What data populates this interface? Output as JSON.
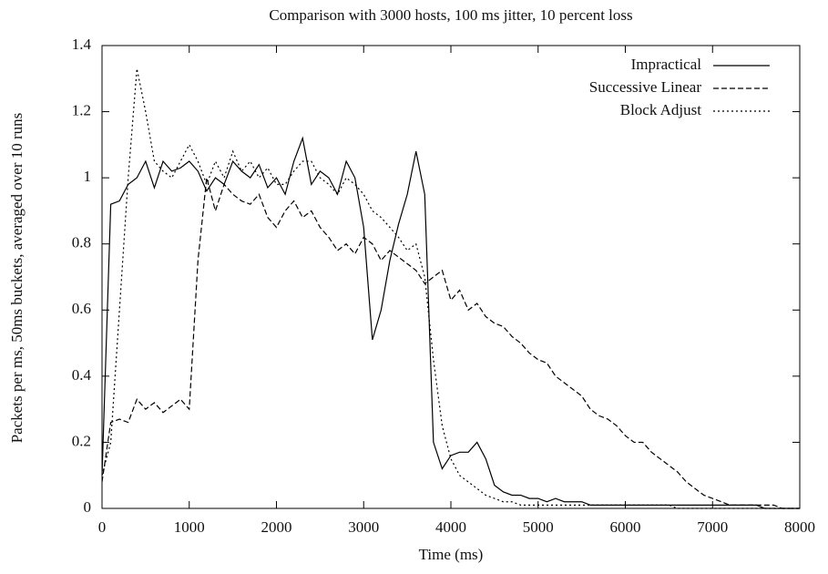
{
  "chart_data": {
    "type": "line",
    "title": "Comparison with 3000 hosts, 100 ms jitter, 10 percent loss",
    "xlabel": "Time (ms)",
    "ylabel": "Packets per ms, 50ms buckets, averaged over 10 runs",
    "x": [
      0,
      100,
      200,
      300,
      400,
      500,
      600,
      700,
      800,
      900,
      1000,
      1100,
      1200,
      1300,
      1400,
      1500,
      1600,
      1700,
      1800,
      1900,
      2000,
      2100,
      2200,
      2300,
      2400,
      2500,
      2600,
      2700,
      2800,
      2900,
      3000,
      3100,
      3200,
      3300,
      3400,
      3500,
      3600,
      3700,
      3800,
      3900,
      4000,
      4100,
      4200,
      4300,
      4400,
      4500,
      4600,
      4700,
      4800,
      4900,
      5000,
      5100,
      5200,
      5300,
      5400,
      5500,
      5600,
      5700,
      5800,
      5900,
      6000,
      6100,
      6200,
      6300,
      6400,
      6500,
      6600,
      6700,
      6800,
      6900,
      7000,
      7100,
      7200,
      7300,
      7400,
      7500,
      7600,
      7700,
      7800,
      7900,
      8000
    ],
    "series": [
      {
        "name": "Impractical",
        "color": "#000000",
        "line_style": "solid",
        "values": [
          0.1,
          0.92,
          0.93,
          0.98,
          1.0,
          1.05,
          0.97,
          1.05,
          1.02,
          1.03,
          1.05,
          1.02,
          0.96,
          1.0,
          0.98,
          1.05,
          1.02,
          1.0,
          1.04,
          0.97,
          1.0,
          0.95,
          1.05,
          1.12,
          0.98,
          1.02,
          1.0,
          0.95,
          1.05,
          1.0,
          0.85,
          0.51,
          0.6,
          0.75,
          0.86,
          0.95,
          1.08,
          0.95,
          0.2,
          0.12,
          0.16,
          0.17,
          0.17,
          0.2,
          0.15,
          0.07,
          0.05,
          0.04,
          0.04,
          0.03,
          0.03,
          0.02,
          0.03,
          0.02,
          0.02,
          0.02,
          0.01,
          0.01,
          0.01,
          0.01,
          0.01,
          0.01,
          0.01,
          0.01,
          0.01,
          0.01,
          0.01,
          0.01,
          0.01,
          0.01,
          0.01,
          0.01,
          0.01,
          0.01,
          0.01,
          0.01,
          0,
          0,
          0,
          0,
          0
        ]
      },
      {
        "name": "Successive Linear",
        "color": "#000000",
        "line_style": "dashed",
        "values": [
          0.08,
          0.26,
          0.27,
          0.26,
          0.33,
          0.3,
          0.32,
          0.29,
          0.31,
          0.33,
          0.3,
          0.75,
          1.0,
          0.9,
          0.98,
          0.95,
          0.93,
          0.92,
          0.95,
          0.88,
          0.85,
          0.9,
          0.93,
          0.88,
          0.9,
          0.85,
          0.82,
          0.78,
          0.8,
          0.77,
          0.82,
          0.8,
          0.75,
          0.78,
          0.76,
          0.74,
          0.72,
          0.68,
          0.7,
          0.72,
          0.63,
          0.66,
          0.6,
          0.62,
          0.58,
          0.56,
          0.55,
          0.52,
          0.5,
          0.47,
          0.45,
          0.44,
          0.4,
          0.38,
          0.36,
          0.34,
          0.3,
          0.28,
          0.27,
          0.25,
          0.22,
          0.2,
          0.2,
          0.17,
          0.15,
          0.13,
          0.11,
          0.08,
          0.06,
          0.04,
          0.03,
          0.02,
          0.01,
          0.01,
          0.01,
          0.01,
          0.01,
          0.01,
          0,
          0,
          0
        ]
      },
      {
        "name": "Block Adjust",
        "color": "#000000",
        "line_style": "dotted",
        "values": [
          0.1,
          0.2,
          0.6,
          1.0,
          1.33,
          1.2,
          1.05,
          1.02,
          1.0,
          1.05,
          1.1,
          1.05,
          0.98,
          1.05,
          1.0,
          1.08,
          1.02,
          1.05,
          1.0,
          1.03,
          0.98,
          0.98,
          1.02,
          1.05,
          1.05,
          1.0,
          0.98,
          0.95,
          1.0,
          0.98,
          0.95,
          0.9,
          0.88,
          0.85,
          0.82,
          0.78,
          0.8,
          0.7,
          0.45,
          0.25,
          0.15,
          0.1,
          0.08,
          0.06,
          0.04,
          0.03,
          0.02,
          0.02,
          0.01,
          0.01,
          0.01,
          0.01,
          0.01,
          0.01,
          0.01,
          0.01,
          0.01,
          0.01,
          0.01,
          0.01,
          0.01,
          0.01,
          0.01,
          0.01,
          0.01,
          0.01,
          0,
          0,
          0,
          0,
          0,
          0,
          0,
          0,
          0,
          0,
          0,
          0,
          0,
          0,
          0
        ]
      }
    ],
    "xlim": [
      0,
      8000
    ],
    "xticks": [
      0,
      1000,
      2000,
      3000,
      4000,
      5000,
      6000,
      7000,
      8000
    ],
    "ylim": [
      0,
      1.4
    ],
    "yticks": [
      0,
      0.2,
      0.4,
      0.6,
      0.8,
      1,
      1.2,
      1.4
    ],
    "legend": "top-right"
  }
}
